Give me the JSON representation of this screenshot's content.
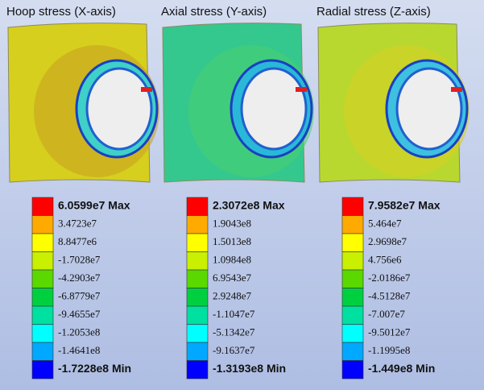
{
  "panels": [
    {
      "title": "Hoop stress (X-axis)",
      "legend": [
        "6.0599e7 Max",
        "3.4723e7",
        "8.8477e6",
        "-1.7028e7",
        "-4.2903e7",
        "-6.8779e7",
        "-9.4655e7",
        "-1.2053e8",
        "-1.4641e8",
        "-1.7228e8 Min"
      ]
    },
    {
      "title": "Axial stress (Y-axis)",
      "legend": [
        "2.3072e8 Max",
        "1.9043e8",
        "1.5013e8",
        "1.0984e8",
        "6.9543e7",
        "2.9248e7",
        "-1.1047e7",
        "-5.1342e7",
        "-9.1637e7",
        "-1.3193e8 Min"
      ]
    },
    {
      "title": "Radial stress (Z-axis)",
      "legend": [
        "7.9582e7 Max",
        "5.464e7",
        "2.9698e7",
        "4.756e6",
        "-2.0186e7",
        "-4.5128e7",
        "-7.007e7",
        "-9.5012e7",
        "-1.1995e8",
        "-1.449e8 Min"
      ]
    }
  ],
  "legend_colors": [
    "#ff0000",
    "#ffaa00",
    "#ffff00",
    "#c8f000",
    "#5ad800",
    "#00d040",
    "#00e0a0",
    "#00ffff",
    "#00a8ff",
    "#0000ff"
  ]
}
